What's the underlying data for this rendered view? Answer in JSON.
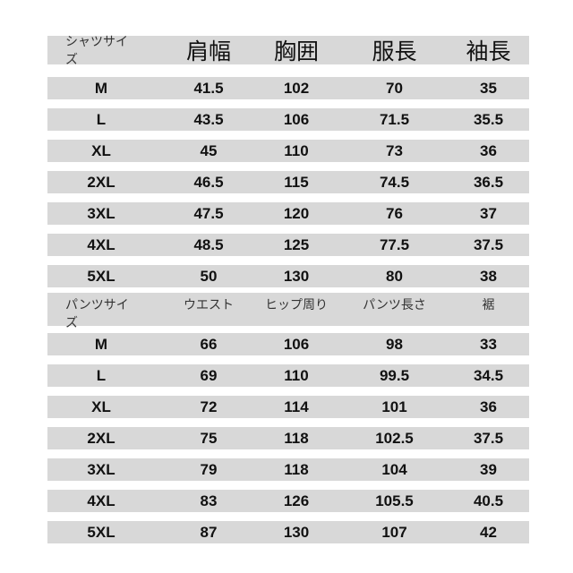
{
  "shirt": {
    "headers": [
      "シャツサイズ",
      "肩幅",
      "胸囲",
      "服長",
      "袖長"
    ],
    "rows": [
      [
        "M",
        "41.5",
        "102",
        "70",
        "35"
      ],
      [
        "L",
        "43.5",
        "106",
        "71.5",
        "35.5"
      ],
      [
        "XL",
        "45",
        "110",
        "73",
        "36"
      ],
      [
        "2XL",
        "46.5",
        "115",
        "74.5",
        "36.5"
      ],
      [
        "3XL",
        "47.5",
        "120",
        "76",
        "37"
      ],
      [
        "4XL",
        "48.5",
        "125",
        "77.5",
        "37.5"
      ],
      [
        "5XL",
        "50",
        "130",
        "80",
        "38"
      ]
    ]
  },
  "pants": {
    "headers": [
      "パンツサイズ",
      "ウエスト",
      "ヒップ周り",
      "パンツ長さ",
      "裾"
    ],
    "rows": [
      [
        "M",
        "66",
        "106",
        "98",
        "33"
      ],
      [
        "L",
        "69",
        "110",
        "99.5",
        "34.5"
      ],
      [
        "XL",
        "72",
        "114",
        "101",
        "36"
      ],
      [
        "2XL",
        "75",
        "118",
        "102.5",
        "37.5"
      ],
      [
        "3XL",
        "79",
        "118",
        "104",
        "39"
      ],
      [
        "4XL",
        "83",
        "126",
        "105.5",
        "40.5"
      ],
      [
        "5XL",
        "87",
        "130",
        "107",
        "42"
      ]
    ]
  },
  "colors": {
    "row_bg": "#d8d8d8",
    "text": "#111111"
  }
}
